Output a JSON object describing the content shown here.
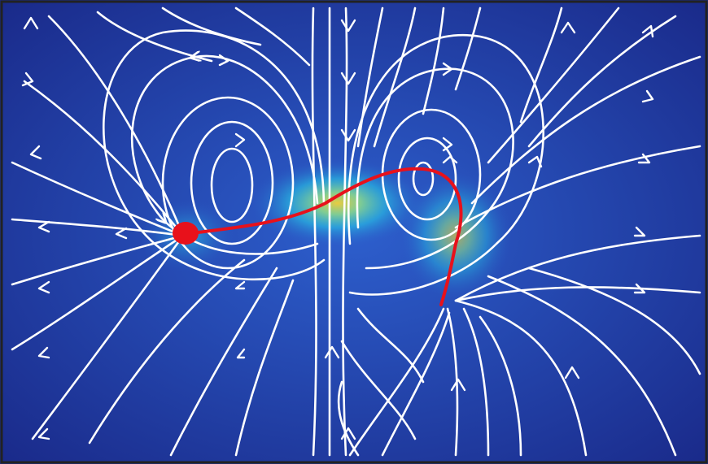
{
  "figure": {
    "kind": "flow-field-visualization",
    "colors": {
      "background_dark": "#1c2b8e",
      "background_mid": "#2a55c6",
      "glow_cyan": "#28c6e6",
      "glow_green": "#8fe08a",
      "glow_yellow": "#f3d23a",
      "streamline": "#ffffff",
      "cell_body": "#e8111b"
    },
    "legend": null
  }
}
